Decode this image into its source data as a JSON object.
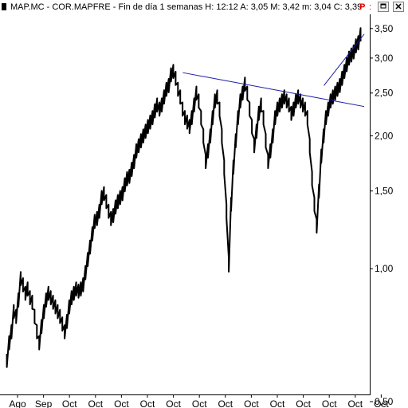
{
  "window": {
    "title": "MAP.MC - COR.MAPFRE - Fin de día 1 semanas  H: 12:12  A: 3,05  M: 3,42  m: 3,04  C: 3,39",
    "flag": "P",
    "flag_suffix": ":",
    "close_icon": "close-icon",
    "restore_icon": "restore-icon"
  },
  "chart_data": {
    "type": "line",
    "yscale": "log",
    "ylim": [
      0.5,
      3.6
    ],
    "grid": false,
    "y_ticks": [
      "3,50",
      "3,00",
      "2,50",
      "2,00",
      "1,50",
      "1,00",
      "0,50"
    ],
    "y_tick_values": [
      3.5,
      3.0,
      2.5,
      2.0,
      1.5,
      1.0,
      0.5
    ],
    "x_tick_labels": [
      "Ago",
      "Sep",
      "Oct",
      "Oct",
      "Oct",
      "Oct",
      "Oct",
      "Oct",
      "Oct",
      "Oct",
      "Oct",
      "Oct",
      "Oct",
      "Oct",
      "Oct"
    ],
    "series": [
      {
        "values": [
          0.62,
          0.68,
          0.72,
          0.8,
          0.78,
          0.85,
          0.95,
          0.92,
          0.88,
          0.9,
          0.86,
          0.84,
          0.78,
          0.72,
          0.68,
          0.74,
          0.8,
          0.85,
          0.88,
          0.86,
          0.84,
          0.82,
          0.8,
          0.78,
          0.75,
          0.72,
          0.76,
          0.82,
          0.86,
          0.88,
          0.9,
          0.89,
          0.9,
          0.92,
          0.98,
          1.05,
          1.12,
          1.2,
          1.28,
          1.3,
          1.35,
          1.45,
          1.48,
          1.42,
          1.35,
          1.3,
          1.32,
          1.38,
          1.42,
          1.45,
          1.48,
          1.55,
          1.6,
          1.62,
          1.68,
          1.75,
          1.85,
          1.9,
          1.95,
          2.0,
          2.05,
          2.1,
          2.15,
          2.2,
          2.28,
          2.35,
          2.3,
          2.35,
          2.45,
          2.55,
          2.6,
          2.75,
          2.8,
          2.7,
          2.55,
          2.45,
          2.3,
          2.2,
          2.15,
          2.1,
          2.2,
          2.35,
          2.5,
          2.4,
          2.2,
          2.0,
          1.75,
          1.85,
          2.0,
          2.2,
          2.4,
          2.45,
          2.3,
          2.0,
          1.7,
          1.35,
          1.02,
          1.4,
          1.7,
          1.95,
          2.2,
          2.4,
          2.5,
          2.62,
          2.5,
          2.3,
          2.1,
          1.9,
          2.05,
          2.25,
          2.35,
          2.2,
          1.95,
          1.75,
          1.85,
          2.0,
          2.2,
          2.3,
          2.35,
          2.4,
          2.45,
          2.4,
          2.35,
          2.25,
          2.3,
          2.4,
          2.45,
          2.4,
          2.35,
          2.3,
          2.2,
          1.9,
          1.6,
          1.4,
          1.25,
          1.5,
          1.8,
          2.0,
          2.2,
          2.3,
          2.4,
          2.45,
          2.5,
          2.55,
          2.6,
          2.7,
          2.8,
          2.9,
          3.0,
          3.05,
          3.1,
          3.2,
          3.25,
          3.39
        ]
      }
    ],
    "trendlines": [
      {
        "name": "resistance",
        "from": [
          0.49,
          2.78
        ],
        "to": [
          0.985,
          2.33
        ]
      },
      {
        "name": "channel",
        "from": [
          0.875,
          2.6
        ],
        "to": [
          0.985,
          3.4
        ]
      }
    ]
  }
}
